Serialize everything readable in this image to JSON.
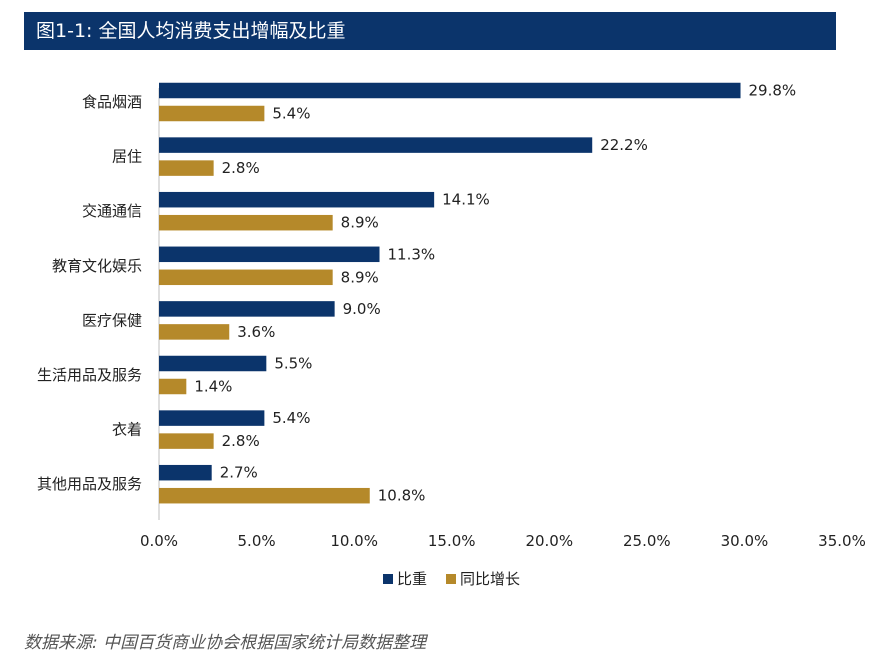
{
  "header": {
    "title": "图1-1: 全国人均消费支出增幅及比重"
  },
  "footer": {
    "source": "数据来源: 中国百货商业协会根据国家统计局数据整理"
  },
  "chart_data": {
    "type": "bar",
    "orientation": "horizontal",
    "title": "图1-1: 全国人均消费支出增幅及比重",
    "categories": [
      "食品烟酒",
      "居住",
      "交通通信",
      "教育文化娱乐",
      "医疗保健",
      "生活用品及服务",
      "衣着",
      "其他用品及服务"
    ],
    "series": [
      {
        "name": "比重",
        "color": "#0b346b",
        "values": [
          29.8,
          22.2,
          14.1,
          11.3,
          9.0,
          5.5,
          5.4,
          2.7
        ]
      },
      {
        "name": "同比增长",
        "color": "#b5892a",
        "values": [
          5.4,
          2.8,
          8.9,
          8.9,
          3.6,
          1.4,
          2.8,
          10.8
        ]
      }
    ],
    "xlim": [
      0,
      35
    ],
    "xticks": [
      0,
      5,
      10,
      15,
      20,
      25,
      30,
      35
    ],
    "value_format": "percent_1dp",
    "legend_position": "bottom",
    "grid": false
  }
}
